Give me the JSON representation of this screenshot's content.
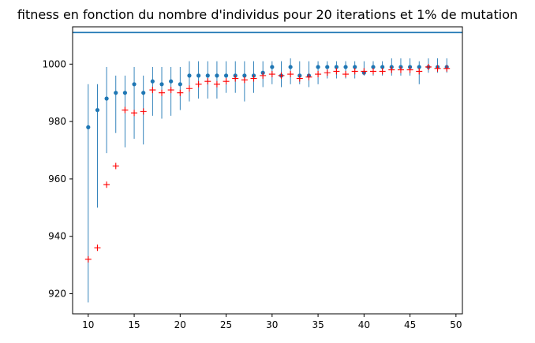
{
  "chart_data": {
    "type": "scatter",
    "title": "fitness en fonction du nombre d'individus pour 20 iterations et 1% de mutation",
    "xlabel": "",
    "ylabel": "",
    "xlim": [
      8.3,
      50.7
    ],
    "ylim": [
      913,
      1013
    ],
    "xticks": [
      10,
      15,
      20,
      25,
      30,
      35,
      40,
      45,
      50
    ],
    "yticks": [
      920,
      940,
      960,
      980,
      1000
    ],
    "grid": false,
    "reference_line": {
      "y": 1011,
      "color": "#1f77b4"
    },
    "colors": {
      "max": "#1f77b4",
      "mean": "#ff0000",
      "errorbar": "#1f77b4"
    },
    "x": [
      10,
      11,
      12,
      13,
      14,
      15,
      16,
      17,
      18,
      19,
      20,
      21,
      22,
      23,
      24,
      25,
      26,
      27,
      28,
      29,
      30,
      31,
      32,
      33,
      34,
      35,
      36,
      37,
      38,
      39,
      40,
      41,
      42,
      43,
      44,
      45,
      46,
      47,
      48,
      49
    ],
    "series": [
      {
        "marker": "dot",
        "values": [
          978,
          984,
          988,
          990,
          990,
          993,
          990,
          994,
          993,
          994,
          993,
          996,
          996,
          996,
          996,
          996,
          996,
          996,
          996,
          997,
          999,
          996,
          999,
          996,
          996,
          999,
          999,
          999,
          999,
          999,
          997,
          999,
          999,
          999,
          999,
          999,
          999,
          999,
          999,
          999
        ]
      },
      {
        "marker": "plus",
        "values": [
          932,
          936,
          958,
          964.5,
          984,
          983,
          983.5,
          991,
          990,
          991,
          990,
          991.5,
          993,
          994,
          993,
          994,
          995,
          994.5,
          995,
          996,
          996.5,
          996,
          996.5,
          995,
          995.5,
          996.5,
          997,
          997.5,
          996.5,
          997.5,
          997.5,
          997.5,
          997.5,
          998,
          998,
          998,
          997.5,
          999,
          998.5,
          998.5
        ],
        "error_low": [
          917,
          950,
          969,
          976,
          971,
          974,
          972,
          982,
          981,
          982,
          984,
          987,
          988,
          988,
          988,
          990,
          990,
          987,
          990,
          992,
          993,
          992,
          993,
          993,
          992,
          993,
          995,
          995,
          995,
          995,
          996,
          996,
          996,
          996,
          996,
          996,
          993,
          997,
          997,
          997
        ],
        "error_high": [
          993,
          993,
          999,
          996,
          996,
          999,
          996,
          999,
          999,
          999,
          999,
          1001,
          1001,
          1001,
          1001,
          1001,
          1001,
          1001,
          1001,
          1001,
          1001,
          1001,
          1002,
          1001,
          1001,
          1001,
          1001,
          1001,
          1001,
          1001,
          1001,
          1001,
          1001,
          1002,
          1002,
          1002,
          1001,
          1002,
          1002,
          1002
        ]
      }
    ]
  }
}
